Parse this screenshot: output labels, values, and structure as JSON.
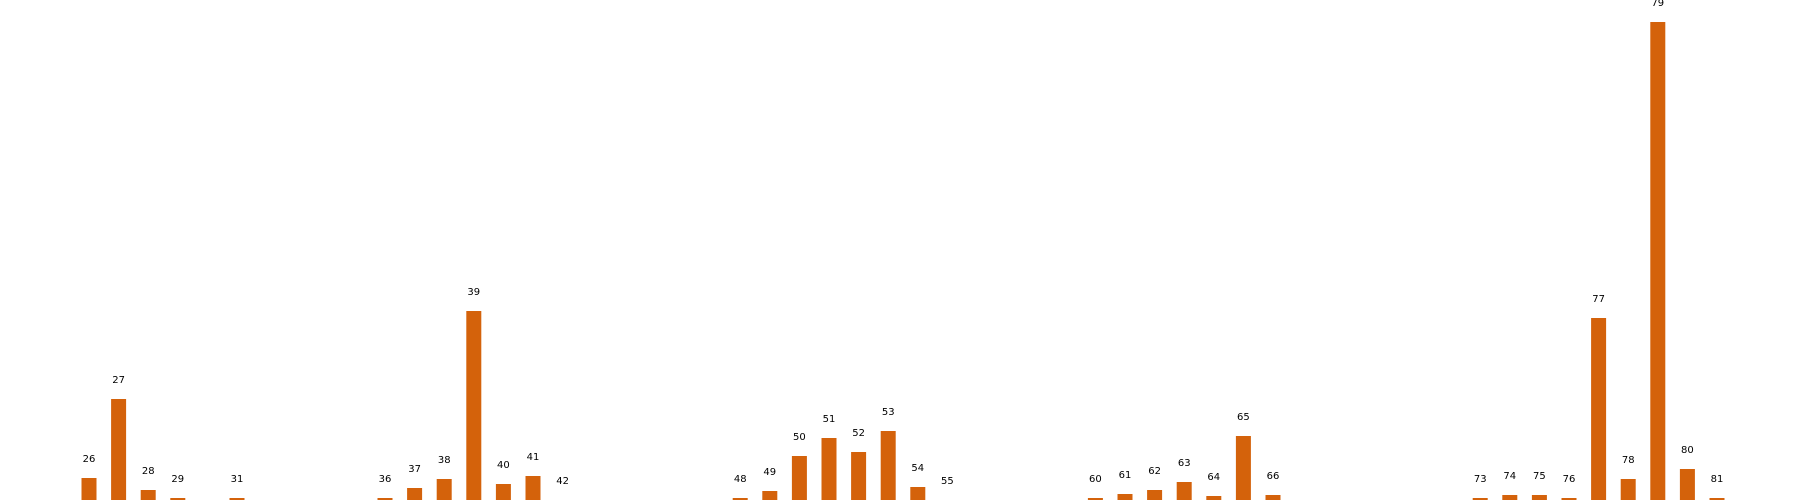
{
  "chart_data": {
    "type": "bar",
    "title": "",
    "xlabel": "",
    "ylabel": "",
    "grid": false,
    "legend": "none",
    "ylim": [
      0,
      495
    ],
    "bar_color": "#d4620b",
    "label_color": "#000000",
    "x": [
      26,
      27,
      28,
      29,
      31,
      36,
      37,
      38,
      39,
      40,
      41,
      42,
      48,
      49,
      50,
      51,
      52,
      53,
      54,
      55,
      60,
      61,
      62,
      63,
      64,
      65,
      66,
      73,
      74,
      75,
      76,
      77,
      78,
      79,
      80,
      81
    ],
    "values": [
      22,
      101,
      10,
      2,
      2,
      2,
      12,
      21,
      189,
      16,
      24,
      0,
      2,
      9,
      44,
      62,
      48,
      69,
      13,
      0,
      2,
      6,
      10,
      18,
      4,
      64,
      5,
      2,
      5,
      5,
      2,
      182,
      21,
      478,
      31,
      2
    ]
  }
}
